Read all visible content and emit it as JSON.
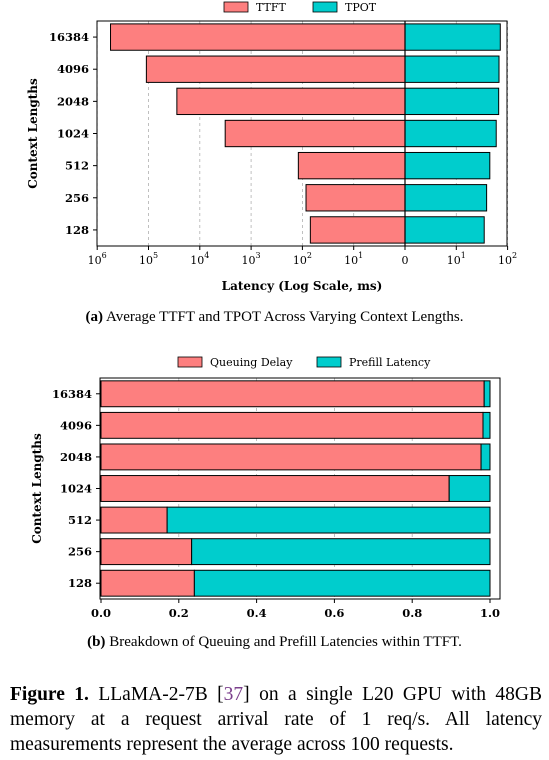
{
  "colors": {
    "primary": "#fd7f7f",
    "secondary": "#00cdcd",
    "grid": "#b0b0b0"
  },
  "chart_data": [
    {
      "type": "bar",
      "orientation": "horizontal",
      "scale": "log (symmetric, mirrored about 0)",
      "ylabel": "Context Lengths",
      "xlabel": "Latency (Log Scale, ms)",
      "categories": [
        "16384",
        "4096",
        "2048",
        "1024",
        "512",
        "256",
        "128"
      ],
      "legend": {
        "position": "top-center",
        "entries": [
          "TTFT",
          "TPOT"
        ]
      },
      "x_ticks_left": [
        "10^6",
        "10^5",
        "10^4",
        "10^3",
        "10^2",
        "10^1",
        "0"
      ],
      "x_ticks_right": [
        "10^1",
        "10^2"
      ],
      "series": [
        {
          "name": "TTFT",
          "side": "left",
          "values": [
            550000,
            110000,
            28000,
            3200,
            120,
            85,
            70
          ]
        },
        {
          "name": "TPOT",
          "side": "right",
          "values": [
            72,
            68,
            67,
            60,
            45,
            39,
            35
          ]
        }
      ],
      "grid": "vertical, dashed"
    },
    {
      "type": "bar",
      "orientation": "horizontal",
      "stacked": true,
      "ylabel": "Context Lengths",
      "xlabel": "",
      "categories": [
        "16384",
        "4096",
        "2048",
        "1024",
        "512",
        "256",
        "128"
      ],
      "legend": {
        "position": "top-center",
        "entries": [
          "Queuing Delay",
          "Prefill Latency"
        ]
      },
      "xlim": [
        0,
        1
      ],
      "x_ticks": [
        "0.0",
        "0.2",
        "0.4",
        "0.6",
        "0.8",
        "1.0"
      ],
      "series": [
        {
          "name": "Queuing Delay",
          "values": [
            0.985,
            0.982,
            0.977,
            0.895,
            0.17,
            0.233,
            0.24
          ]
        },
        {
          "name": "Prefill Latency",
          "values": [
            0.015,
            0.018,
            0.023,
            0.105,
            0.83,
            0.767,
            0.76
          ]
        }
      ],
      "grid": "vertical, dashed"
    }
  ],
  "captions": {
    "a_label": "(a)",
    "a_text": "Average TTFT and TPOT Across Varying Context Lengths.",
    "b_label": "(b)",
    "b_text": "Breakdown of Queuing and Prefill Latencies within TTFT."
  },
  "figure_caption": {
    "label": "Figure 1.",
    "text_1": "LLaMA-2-7B [",
    "ref": "37",
    "text_2": "] on a single L20 GPU with 48GB memory at a request arrival rate of 1 req/s. All latency measurements represent the average across 100 requests."
  }
}
